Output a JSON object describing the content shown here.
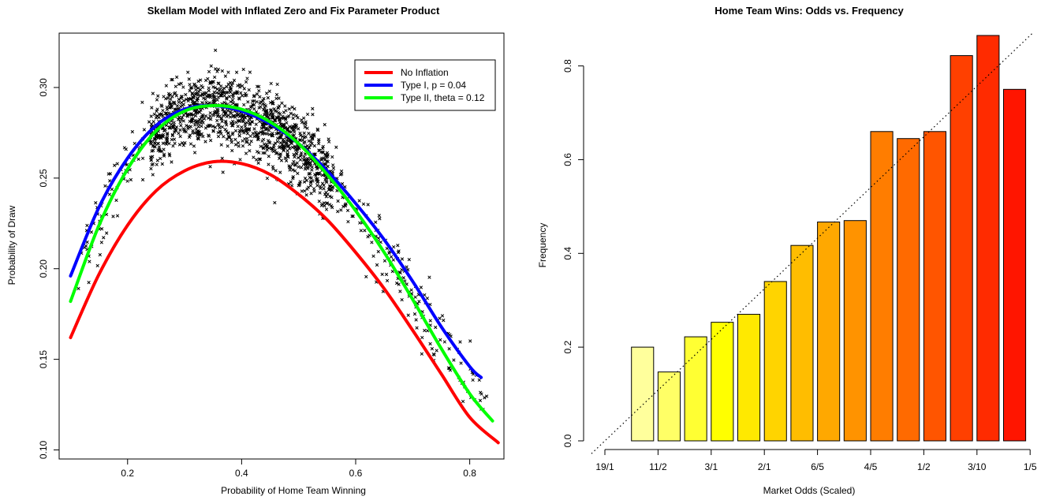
{
  "chart_data": [
    {
      "type": "scatter",
      "title": "Skellam Model with Inflated Zero and Fix Parameter Product",
      "xlabel": "Probability of Home Team Winning",
      "ylabel": "Probability of Draw",
      "xlim": [
        0.08,
        0.86
      ],
      "ylim": [
        0.095,
        0.33
      ],
      "x_ticks": [
        0.2,
        0.4,
        0.6,
        0.8
      ],
      "x_tick_labels": [
        "0.2",
        "0.4",
        "0.6",
        "0.8"
      ],
      "y_ticks": [
        0.1,
        0.15,
        0.2,
        0.25,
        0.3
      ],
      "y_tick_labels": [
        "0.10",
        "0.15",
        "0.20",
        "0.25",
        "0.30"
      ],
      "legend_position": "top-right",
      "marker": "x",
      "scatter": {
        "x_range": [
          0.11,
          0.83
        ],
        "count_approx": 1500,
        "peak_near": {
          "x": 0.36,
          "y": 0.285
        },
        "spread_sd": 0.01
      },
      "series": [
        {
          "name": "No Inflation",
          "color": "#ff0000",
          "x": [
            0.1,
            0.15,
            0.2,
            0.25,
            0.3,
            0.35,
            0.4,
            0.45,
            0.5,
            0.55,
            0.6,
            0.65,
            0.7,
            0.75,
            0.8,
            0.85
          ],
          "y": [
            0.162,
            0.197,
            0.224,
            0.243,
            0.254,
            0.259,
            0.258,
            0.252,
            0.241,
            0.227,
            0.209,
            0.189,
            0.166,
            0.142,
            0.118,
            0.104
          ]
        },
        {
          "name": "Type I, p = 0.04",
          "color": "#0000ff",
          "x": [
            0.1,
            0.15,
            0.2,
            0.25,
            0.3,
            0.35,
            0.4,
            0.45,
            0.5,
            0.55,
            0.6,
            0.65,
            0.7,
            0.75,
            0.8,
            0.82
          ],
          "y": [
            0.196,
            0.234,
            0.261,
            0.279,
            0.288,
            0.29,
            0.287,
            0.28,
            0.269,
            0.254,
            0.236,
            0.216,
            0.193,
            0.168,
            0.146,
            0.14
          ]
        },
        {
          "name": "Type II, theta = 0.12",
          "color": "#00ff00",
          "x": [
            0.1,
            0.15,
            0.2,
            0.25,
            0.3,
            0.35,
            0.4,
            0.45,
            0.5,
            0.55,
            0.6,
            0.65,
            0.7,
            0.75,
            0.8,
            0.84
          ],
          "y": [
            0.182,
            0.224,
            0.255,
            0.276,
            0.287,
            0.29,
            0.288,
            0.281,
            0.269,
            0.252,
            0.232,
            0.209,
            0.183,
            0.156,
            0.131,
            0.116
          ]
        }
      ]
    },
    {
      "type": "bar",
      "title": "Home Team Wins: Odds vs. Frequency",
      "xlabel": "Market Odds (Scaled)",
      "ylabel": "Frequency",
      "ylim": [
        0,
        0.87
      ],
      "y_ticks": [
        0,
        0.2,
        0.4,
        0.6,
        0.8
      ],
      "y_tick_labels": [
        "0.0",
        "0.2",
        "0.4",
        "0.6",
        "0.8"
      ],
      "x_tick_labels": [
        "19/1",
        "11/2",
        "3/1",
        "2/1",
        "6/5",
        "4/5",
        "1/2",
        "3/10",
        "1/5"
      ],
      "values": [
        0.0,
        0.2,
        0.147,
        0.222,
        0.253,
        0.27,
        0.34,
        0.417,
        0.467,
        0.47,
        0.66,
        0.645,
        0.66,
        0.822,
        0.865,
        0.75
      ],
      "colors": [
        "#ffffd0",
        "#ffff9c",
        "#ffff66",
        "#ffff33",
        "#ffff00",
        "#ffe900",
        "#ffd400",
        "#ffbd00",
        "#ffa800",
        "#ff9300",
        "#ff7d00",
        "#ff6a00",
        "#ff5500",
        "#ff4000",
        "#ff2b00",
        "#ff1500"
      ],
      "reference_line": {
        "style": "dotted",
        "from": [
          0,
          0
        ],
        "to": [
          16,
          0.865
        ]
      }
    }
  ]
}
